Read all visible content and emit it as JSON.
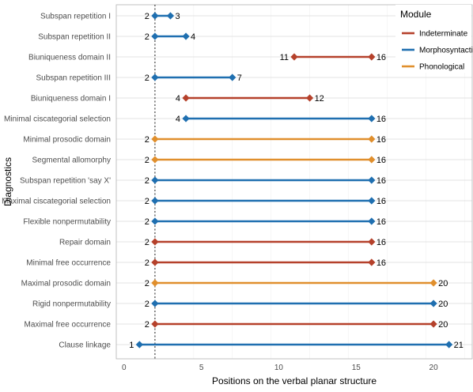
{
  "chart_data": {
    "type": "dumbbell",
    "xlabel": "Positions on the verbal planar structure",
    "ylabel": "Diagnostics",
    "xlim": [
      -0.5,
      22.5
    ],
    "xticks": [
      0,
      5,
      10,
      15,
      20
    ],
    "reference_line": 2,
    "grid": true,
    "legend_position": "top-right",
    "legend": {
      "title": "Module",
      "items": [
        {
          "name": "Indeterminate",
          "color": "#b5412b"
        },
        {
          "name": "Morphosyntactic",
          "color": "#1f6fb0"
        },
        {
          "name": "Phonological",
          "color": "#e08f2d"
        }
      ]
    },
    "rows": [
      {
        "label": "Subspan repetition I",
        "start": 2,
        "end": 3,
        "module": "Morphosyntactic"
      },
      {
        "label": "Subspan repetition II",
        "start": 2,
        "end": 4,
        "module": "Morphosyntactic"
      },
      {
        "label": "Biuniqueness domain II",
        "start": 11,
        "end": 16,
        "module": "Indeterminate"
      },
      {
        "label": "Subspan repetition III",
        "start": 2,
        "end": 7,
        "module": "Morphosyntactic"
      },
      {
        "label": "Biuniqueness domain I",
        "start": 4,
        "end": 12,
        "module": "Indeterminate"
      },
      {
        "label": "Minimal ciscategorial selection",
        "start": 4,
        "end": 16,
        "module": "Morphosyntactic"
      },
      {
        "label": "Minimal prosodic domain",
        "start": 2,
        "end": 16,
        "module": "Phonological"
      },
      {
        "label": "Segmental allomorphy",
        "start": 2,
        "end": 16,
        "module": "Phonological"
      },
      {
        "label": "Subspan repetition 'say X'",
        "start": 2,
        "end": 16,
        "module": "Morphosyntactic"
      },
      {
        "label": "Maximal ciscategorial selection",
        "start": 2,
        "end": 16,
        "module": "Morphosyntactic"
      },
      {
        "label": "Flexible nonpermutability",
        "start": 2,
        "end": 16,
        "module": "Morphosyntactic"
      },
      {
        "label": "Repair domain",
        "start": 2,
        "end": 16,
        "module": "Indeterminate"
      },
      {
        "label": "Minimal free occurrence",
        "start": 2,
        "end": 16,
        "module": "Indeterminate"
      },
      {
        "label": "Maximal prosodic domain",
        "start": 2,
        "end": 20,
        "module": "Phonological"
      },
      {
        "label": "Rigid nonpermutability",
        "start": 2,
        "end": 20,
        "module": "Morphosyntactic"
      },
      {
        "label": "Maximal free occurrence",
        "start": 2,
        "end": 20,
        "module": "Indeterminate"
      },
      {
        "label": "Clause linkage",
        "start": 1,
        "end": 21,
        "module": "Morphosyntactic"
      }
    ]
  }
}
